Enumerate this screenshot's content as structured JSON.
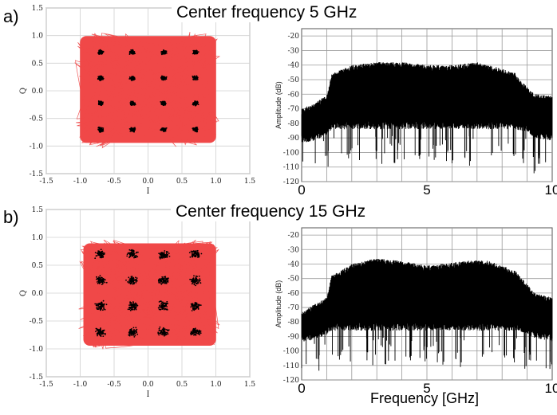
{
  "chart_data": [
    {
      "id": "a-constellation",
      "type": "scatter",
      "panel": "a)",
      "title": "Center frequency 5 GHz",
      "xlabel": "I",
      "ylabel": "Q",
      "xlim": [
        -1.5,
        1.5
      ],
      "ylim": [
        -1.5,
        1.5
      ],
      "x_ticks": [
        "-1.5",
        "-1.0",
        "-0.5",
        "0.0",
        "0.5",
        "1.0",
        "1.5"
      ],
      "y_ticks": [
        "-1.5",
        "-1.0",
        "-0.5",
        "0.0",
        "0.5",
        "1.0",
        "1.5"
      ],
      "trajectory_extent": {
        "x": [
          -1.05,
          1.05
        ],
        "y": [
          -1.0,
          1.05
        ]
      },
      "symbol_levels": [
        -0.7,
        -0.23,
        0.23,
        0.7
      ],
      "cluster_spread": 0.04,
      "grid": true,
      "colors": {
        "trajectory": "#f04848",
        "symbols": "#000000"
      }
    },
    {
      "id": "a-spectrum",
      "type": "line",
      "panel": "a)",
      "ylabel": "Amplitude (dB)",
      "xlim": [
        0,
        10
      ],
      "ylim": [
        -120,
        -15
      ],
      "x_ticks": [
        "0",
        "5",
        "10"
      ],
      "y_ticks": [
        "-20",
        "-30",
        "-40",
        "-50",
        "-60",
        "-70",
        "-80",
        "-90",
        "-100",
        "-110",
        "-120"
      ],
      "x_key": [
        0,
        0.5,
        1.0,
        1.2,
        2.0,
        3.0,
        4.0,
        5.0,
        6.0,
        7.0,
        7.5,
        8.5,
        9.0,
        9.3,
        10
      ],
      "y_top_key": [
        -72,
        -68,
        -63,
        -48,
        -42,
        -40,
        -40,
        -42,
        -42,
        -40,
        -42,
        -47,
        -57,
        -62,
        -63
      ],
      "y_floor_key": [
        -88,
        -86,
        -82,
        -78,
        -78,
        -78,
        -78,
        -78,
        -78,
        -78,
        -78,
        -78,
        -80,
        -84,
        -86
      ],
      "grid": true,
      "colors": {
        "trace": "#000000"
      }
    },
    {
      "id": "b-constellation",
      "type": "scatter",
      "panel": "b)",
      "title": "Center frequency 15 GHz",
      "xlabel": "I",
      "ylabel": "Q",
      "xlim": [
        -1.5,
        1.5
      ],
      "ylim": [
        -1.5,
        1.5
      ],
      "x_ticks": [
        "-1.5",
        "-1.0",
        "-0.5",
        "0.0",
        "0.5",
        "1.0",
        "1.5"
      ],
      "y_ticks": [
        "-1.5",
        "-1.0",
        "-0.5",
        "0.0",
        "0.5",
        "1.0",
        "1.5"
      ],
      "trajectory_extent": {
        "x": [
          -1.0,
          1.05
        ],
        "y": [
          -1.0,
          0.95
        ]
      },
      "symbol_levels": [
        -0.7,
        -0.23,
        0.23,
        0.7
      ],
      "cluster_spread": 0.08,
      "grid": true,
      "colors": {
        "trajectory": "#f04848",
        "symbols": "#000000"
      }
    },
    {
      "id": "b-spectrum",
      "type": "line",
      "panel": "b)",
      "ylabel": "Amplitude (dB)",
      "xlabel": "Frequency [GHz]",
      "xlim": [
        0,
        10
      ],
      "ylim": [
        -120,
        -15
      ],
      "x_ticks": [
        "0",
        "5",
        "10"
      ],
      "y_ticks": [
        "-20",
        "-30",
        "-40",
        "-50",
        "-60",
        "-70",
        "-80",
        "-90",
        "-100",
        "-110",
        "-120"
      ],
      "x_key": [
        0,
        0.5,
        1.0,
        1.2,
        2.0,
        3.0,
        4.0,
        5.0,
        6.0,
        7.0,
        7.5,
        8.5,
        9.0,
        9.3,
        10
      ],
      "y_top_key": [
        -75,
        -70,
        -65,
        -50,
        -42,
        -38,
        -40,
        -43,
        -41,
        -39,
        -40,
        -46,
        -56,
        -62,
        -65
      ],
      "y_floor_key": [
        -88,
        -86,
        -83,
        -80,
        -80,
        -80,
        -80,
        -80,
        -80,
        -80,
        -80,
        -80,
        -82,
        -85,
        -88
      ],
      "grid": true,
      "colors": {
        "trace": "#000000"
      }
    }
  ]
}
